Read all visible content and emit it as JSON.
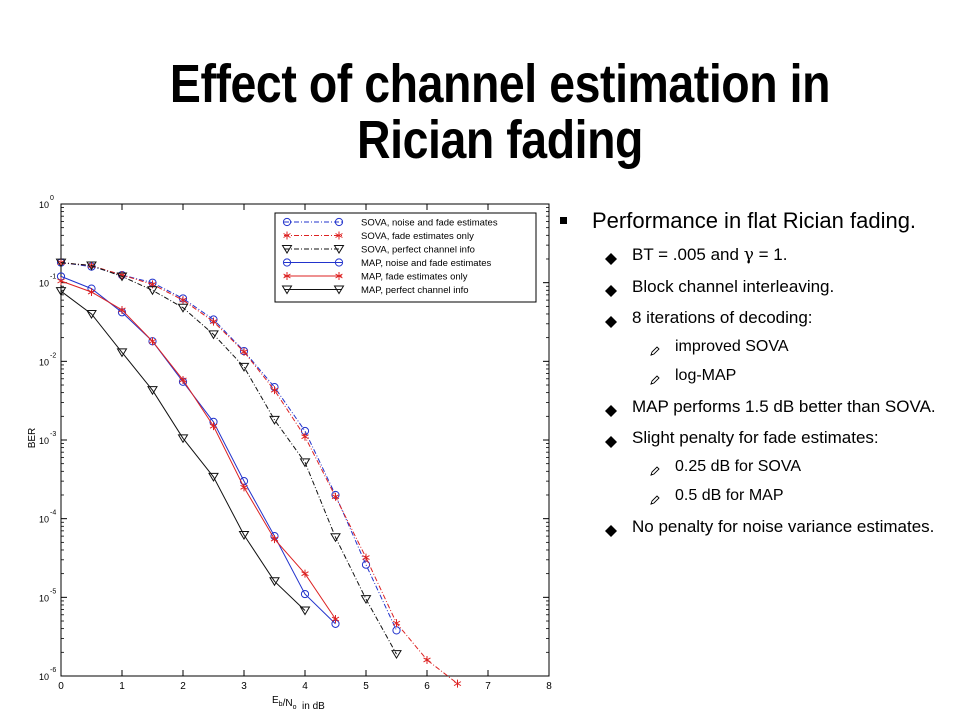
{
  "slide": {
    "title_line1": "Effect of channel estimation in",
    "title_line2": "Rician fading"
  },
  "bullets": [
    {
      "level": 0,
      "text": "Performance in flat Rician fading."
    },
    {
      "level": 1,
      "text_html": "BT = .005 and <span style=\"font-family:'DejaVu Serif',serif\">γ</span> = 1."
    },
    {
      "level": 1,
      "text": "Block channel interleaving."
    },
    {
      "level": 1,
      "text": "8 iterations of decoding:"
    },
    {
      "level": 2,
      "text": "improved SOVA"
    },
    {
      "level": 2,
      "text": "log-MAP"
    },
    {
      "level": 1,
      "text": "MAP performs 1.5 dB better than SOVA."
    },
    {
      "level": 1,
      "text": "Slight penalty for fade estimates:"
    },
    {
      "level": 2,
      "text": "0.25 dB for SOVA"
    },
    {
      "level": 2,
      "text": "0.5 dB for MAP"
    },
    {
      "level": 1,
      "text": "No penalty for noise variance estimates."
    }
  ],
  "chart_data": {
    "type": "line",
    "title": "",
    "xlabel": "E_b/N_o  in dB",
    "ylabel": "BER",
    "xlim": [
      0,
      8
    ],
    "ylim": [
      1e-06,
      1
    ],
    "yscale": "log",
    "xticks": [
      "0",
      "1",
      "2",
      "3",
      "4",
      "5",
      "6",
      "7",
      "8"
    ],
    "yticks": [
      {
        "base": "10",
        "exp": "0"
      },
      {
        "base": "10",
        "exp": "-1"
      },
      {
        "base": "10",
        "exp": "-2"
      },
      {
        "base": "10",
        "exp": "-3"
      },
      {
        "base": "10",
        "exp": "-4"
      },
      {
        "base": "10",
        "exp": "-5"
      },
      {
        "base": "10",
        "exp": "-6"
      }
    ],
    "grid": false,
    "legend_position": "top-right",
    "series": [
      {
        "name": "SOVA, noise and fade estimates",
        "color": "#2233cc",
        "marker": "circle",
        "dash": "5,2,1,2",
        "x": [
          0,
          0.5,
          1,
          1.5,
          2,
          2.5,
          3,
          3.5,
          4,
          4.5,
          5,
          5.5
        ],
        "y": [
          0.18,
          0.16,
          0.125,
          0.1,
          0.063,
          0.034,
          0.0135,
          0.0047,
          0.0013,
          0.0002,
          2.6e-05,
          3.8e-06
        ]
      },
      {
        "name": "SOVA, fade estimates only",
        "color": "#dd2222",
        "marker": "star",
        "dash": "5,2,1,2",
        "x": [
          0,
          0.5,
          1,
          1.5,
          2,
          2.5,
          3,
          3.5,
          4,
          4.5,
          5,
          5.5,
          6,
          6.5
        ],
        "y": [
          0.18,
          0.165,
          0.125,
          0.095,
          0.06,
          0.032,
          0.0132,
          0.0043,
          0.0011,
          0.00019,
          3.2e-05,
          4.7e-06,
          1.6e-06,
          8e-07
        ]
      },
      {
        "name": "SOVA, perfect channel info",
        "color": "#111111",
        "marker": "triangle",
        "dash": "5,2,1,2",
        "x": [
          0,
          0.5,
          1,
          1.5,
          2,
          2.5,
          3,
          3.5,
          4,
          4.5,
          5,
          5.5
        ],
        "y": [
          0.18,
          0.165,
          0.12,
          0.08,
          0.048,
          0.022,
          0.0085,
          0.0018,
          0.00052,
          5.8e-05,
          9.5e-06,
          1.9e-06
        ]
      },
      {
        "name": "MAP, noise and fade estimates",
        "color": "#2233cc",
        "marker": "circle",
        "dash": "",
        "x": [
          0,
          0.5,
          1,
          1.5,
          2,
          2.5,
          3,
          3.5,
          4,
          4.5
        ],
        "y": [
          0.12,
          0.084,
          0.042,
          0.018,
          0.0055,
          0.0017,
          0.0003,
          6e-05,
          1.1e-05,
          4.6e-06
        ]
      },
      {
        "name": "MAP, fade estimates only",
        "color": "#dd2222",
        "marker": "star",
        "dash": "",
        "x": [
          0,
          0.5,
          1,
          1.5,
          2,
          2.5,
          3,
          3.5,
          4,
          4.5
        ],
        "y": [
          0.105,
          0.076,
          0.045,
          0.018,
          0.0058,
          0.0015,
          0.00025,
          5.5e-05,
          2e-05,
          5.3e-06
        ]
      },
      {
        "name": "MAP, perfect channel info",
        "color": "#111111",
        "marker": "triangle",
        "dash": "",
        "x": [
          0,
          0.5,
          1,
          1.5,
          2,
          2.5,
          3,
          3.5,
          4
        ],
        "y": [
          0.078,
          0.04,
          0.013,
          0.0043,
          0.00105,
          0.00034,
          6.2e-05,
          1.6e-05,
          6.8e-06
        ]
      }
    ]
  }
}
